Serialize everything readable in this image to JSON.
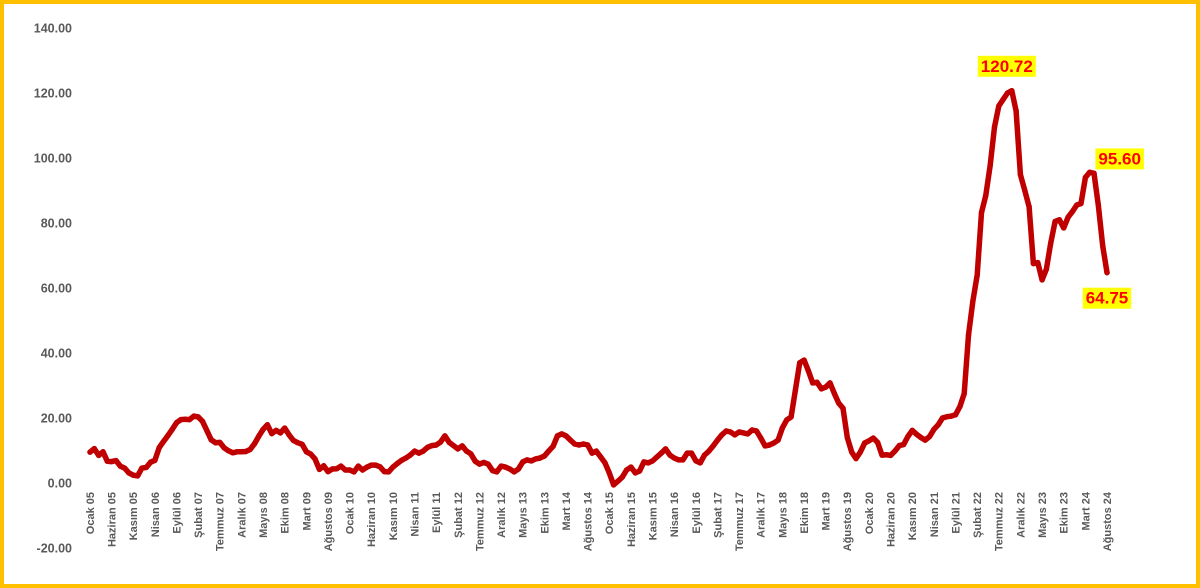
{
  "chart_data": {
    "type": "line",
    "ylim": [
      -20,
      140
    ],
    "grid": false,
    "legend": "none",
    "y_tick_labels": [
      "140.00",
      "120.00",
      "100.00",
      "80.00",
      "60.00",
      "40.00",
      "20.00",
      "0.00",
      "-20.00"
    ],
    "x_tick_labels": [
      "Ocak 05",
      "Haziran 05",
      "Kasım 05",
      "Nisan 06",
      "Eylül 06",
      "Şubat 07",
      "Temmuz 07",
      "Aralık 07",
      "Mayıs 08",
      "Ekim 08",
      "Mart 09",
      "Ağustos 09",
      "Ocak 10",
      "Haziran 10",
      "Kasım 10",
      "Nisan 11",
      "Eylül 11",
      "Şubat 12",
      "Temmuz 12",
      "Aralık 12",
      "Mayıs 13",
      "Ekim 13",
      "Mart 14",
      "Ağustos 14",
      "Ocak 15",
      "Haziran 15",
      "Kasım 15",
      "Nisan 16",
      "Eylül 16",
      "Şubat 17",
      "Temmuz 17",
      "Aralık 17",
      "Mayıs 18",
      "Ekim 18",
      "Mart 19",
      "Ağustos 19",
      "Ocak 20",
      "Haziran 20",
      "Kasım 20",
      "Nisan 21",
      "Eylül 21",
      "Şubat 22",
      "Temmuz 22",
      "Aralık 22",
      "Mayıs 23",
      "Ekim 23",
      "Mart 24",
      "Ağustos 24"
    ],
    "series": [
      {
        "color": "#C00000",
        "values": [
          9.5,
          10.6,
          8.5,
          9.6,
          6.7,
          6.6,
          6.9,
          5.2,
          4.6,
          3.1,
          2.4,
          2.2,
          4.6,
          4.8,
          6.4,
          7.0,
          10.9,
          12.8,
          14.6,
          16.5,
          18.6,
          19.5,
          19.6,
          19.5,
          20.6,
          20.3,
          19.0,
          16.2,
          13.3,
          12.4,
          12.5,
          10.8,
          9.9,
          9.3,
          9.6,
          9.6,
          9.7,
          10.3,
          12.1,
          14.4,
          16.5,
          17.9,
          15.2,
          16.2,
          15.4,
          16.9,
          14.8,
          13.1,
          12.4,
          11.9,
          9.6,
          8.9,
          7.4,
          4.2,
          5.3,
          3.5,
          4.3,
          4.4,
          5.2,
          4.0,
          4.0,
          3.4,
          5.2,
          4.0,
          4.9,
          5.5,
          5.5,
          5.0,
          3.5,
          3.4,
          4.9,
          6.0,
          7.0,
          7.7,
          8.6,
          9.8,
          9.2,
          9.8,
          11.0,
          11.5,
          11.7,
          12.6,
          14.5,
          12.5,
          11.5,
          10.5,
          11.4,
          9.8,
          9.0,
          6.7,
          5.8,
          6.3,
          5.8,
          3.8,
          3.4,
          5.2,
          4.9,
          4.3,
          3.4,
          4.3,
          6.5,
          7.1,
          6.8,
          7.4,
          7.7,
          8.3,
          9.8,
          11.3,
          14.5,
          15.1,
          14.5,
          13.2,
          12.0,
          11.7,
          12.0,
          11.7,
          9.2,
          9.8,
          8.0,
          6.2,
          3.1,
          -0.6,
          0.6,
          1.8,
          4.0,
          4.9,
          3.1,
          3.7,
          6.5,
          6.2,
          6.8,
          8.0,
          9.2,
          10.5,
          8.6,
          7.7,
          7.1,
          7.1,
          9.2,
          9.2,
          6.8,
          6.2,
          8.6,
          9.8,
          11.4,
          13.2,
          14.8,
          16.0,
          15.7,
          14.8,
          15.7,
          15.4,
          15.1,
          16.3,
          16.0,
          13.8,
          11.4,
          11.7,
          12.3,
          13.2,
          17.0,
          19.4,
          20.3,
          28.6,
          37.0,
          37.8,
          34.5,
          30.8,
          31.0,
          29.0,
          29.5,
          30.8,
          27.5,
          24.6,
          23.0,
          14.0,
          9.5,
          7.5,
          9.5,
          12.3,
          13.0,
          13.8,
          12.5,
          8.6,
          8.7,
          8.5,
          9.8,
          11.5,
          11.8,
          14.3,
          16.2,
          15.0,
          14.0,
          13.2,
          14.3,
          16.5,
          17.9,
          20.0,
          20.4,
          20.6,
          21.0,
          23.5,
          27.5,
          45.5,
          55.8,
          64.0,
          83.2,
          88.5,
          97.8,
          109.5,
          116.0,
          118.0,
          120.0,
          120.72,
          114.5,
          94.9,
          90.0,
          85.0,
          67.5,
          67.8,
          62.5,
          65.8,
          73.8,
          80.5,
          81.0,
          78.5,
          81.8,
          83.5,
          85.5,
          86.0,
          94.0,
          95.6,
          95.3,
          85.5,
          73.0,
          64.75
        ]
      }
    ],
    "data_labels": [
      {
        "text": "120.72",
        "position": "above"
      },
      {
        "text": "95.60",
        "position": "right"
      },
      {
        "text": "64.75",
        "position": "below"
      }
    ],
    "colors": {
      "line": "#C00000",
      "label_fill": "#FFFF00",
      "label_text": "#FF0000",
      "axis_text": "#595959",
      "frame": "#FFC000",
      "background": "#FFFFFF"
    }
  }
}
